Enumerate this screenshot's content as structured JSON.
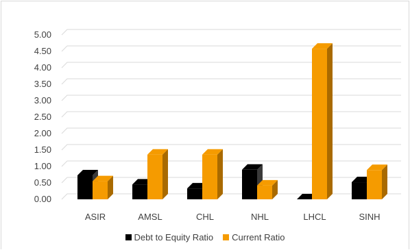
{
  "chart_data": {
    "type": "bar",
    "style": "3d-clustered-column",
    "categories": [
      "ASIR",
      "AMSL",
      "CHL",
      "NHL",
      "LHCL",
      "SINH"
    ],
    "series": [
      {
        "name": "Debt to Equity Ratio",
        "values": [
          0.73,
          0.45,
          0.33,
          0.9,
          0.0,
          0.52
        ],
        "color": "#000000",
        "side_color": "#3a3a3a"
      },
      {
        "name": "Current Ratio",
        "values": [
          0.55,
          1.36,
          1.36,
          0.42,
          4.58,
          0.89
        ],
        "color": "#f59b00",
        "side_color": "#a96a00"
      }
    ],
    "ylim": [
      0,
      5
    ],
    "yticks": [
      "0.00",
      "0.50",
      "1.00",
      "1.50",
      "2.00",
      "2.50",
      "3.00",
      "3.50",
      "4.00",
      "4.50",
      "5.00"
    ],
    "title": "",
    "xlabel": "",
    "ylabel": "",
    "grid": true,
    "legend_position": "bottom"
  }
}
